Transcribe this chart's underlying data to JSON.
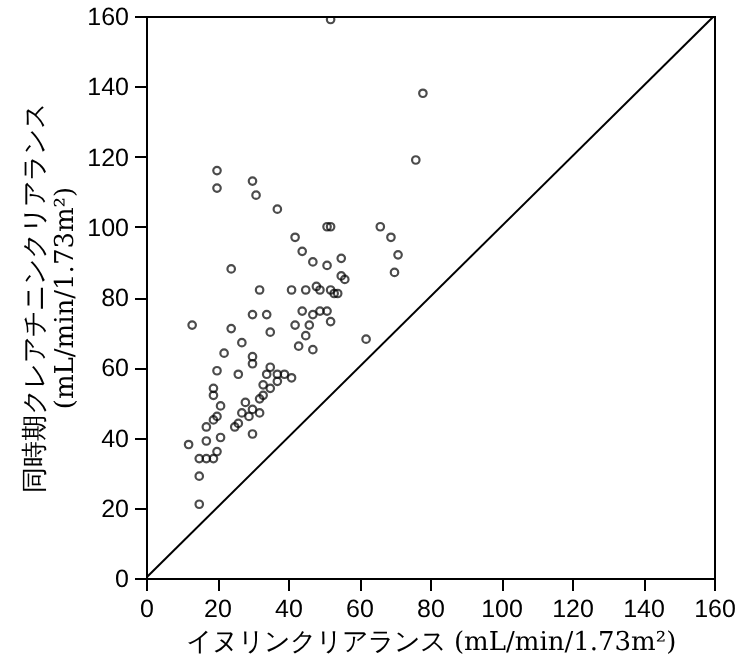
{
  "chart_data": {
    "type": "scatter",
    "xlabel": "イヌリンクリアランス (mL/min/1.73m²)",
    "ylabel": "同時期クレアチニンクリアランス\n(mL/min/1.73m²)",
    "xlim": [
      0,
      160
    ],
    "ylim": [
      0,
      160
    ],
    "xticks": [
      0,
      20,
      40,
      60,
      80,
      100,
      120,
      140,
      160
    ],
    "yticks": [
      0,
      20,
      40,
      60,
      80,
      100,
      120,
      140,
      160
    ],
    "grid": false,
    "marker": "circle",
    "series": [
      {
        "color": "#000000",
        "x": [
          13,
          24,
          32,
          41,
          30,
          34,
          35,
          27,
          22,
          20,
          26,
          30,
          30,
          19,
          19,
          21,
          19,
          17,
          20,
          12,
          15,
          17,
          19,
          20,
          21,
          17,
          15,
          15,
          30,
          26,
          25,
          27,
          28,
          30,
          33,
          35,
          34,
          35,
          37,
          39,
          41,
          37,
          33,
          32,
          29,
          32,
          42,
          44,
          47,
          46,
          43,
          45,
          47,
          49,
          51,
          52,
          45,
          48,
          49,
          52,
          53,
          54,
          52,
          78,
          76,
          20,
          20,
          30,
          31,
          37,
          42,
          51,
          52,
          44,
          47,
          51,
          55,
          66,
          69,
          71,
          70,
          55,
          56,
          24,
          62
        ],
        "values": [
          72,
          71,
          82,
          82,
          75,
          75,
          70,
          67,
          64,
          59,
          58,
          63,
          61,
          54,
          52,
          49,
          45,
          43,
          46,
          38,
          34,
          34,
          34,
          36,
          40,
          39,
          29,
          21,
          41,
          44,
          43,
          47,
          50,
          48,
          52,
          54,
          58,
          60,
          58,
          58,
          57,
          56,
          55,
          51,
          46,
          47,
          72,
          76,
          75,
          72,
          66,
          69,
          65,
          76,
          76,
          73,
          82,
          83,
          82,
          82,
          81,
          81,
          159,
          138,
          119,
          116,
          111,
          113,
          109,
          105,
          97,
          100,
          100,
          93,
          90,
          89,
          91,
          100,
          97,
          92,
          87,
          86,
          85,
          88,
          68
        ]
      },
      {
        "type": "line",
        "color": "#000000",
        "x": [
          0,
          160
        ],
        "values": [
          0,
          160
        ],
        "marker": "none"
      }
    ]
  }
}
